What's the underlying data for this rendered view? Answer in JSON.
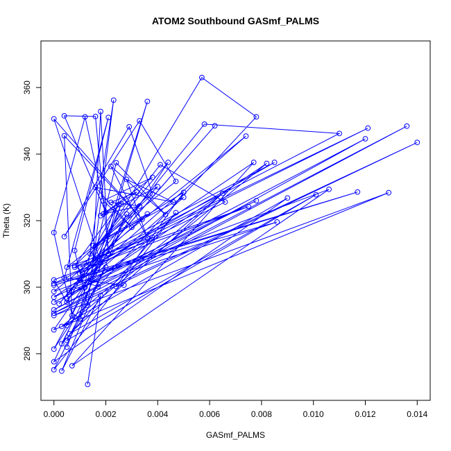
{
  "chart_data": {
    "type": "line",
    "title": "ATOM2 Southbound GASmf_PALMS",
    "xlabel": "GASmf_PALMS",
    "ylabel": "Theta (K)",
    "xlim": [
      -0.0005,
      0.0145
    ],
    "ylim": [
      266,
      374
    ],
    "x_ticks": [
      0.0,
      0.002,
      0.004,
      0.006,
      0.008,
      0.01,
      0.012,
      0.014
    ],
    "x_tick_labels": [
      "0.000",
      "0.002",
      "0.004",
      "0.006",
      "0.008",
      "0.010",
      "0.012",
      "0.014"
    ],
    "y_ticks": [
      280,
      300,
      320,
      340,
      360
    ],
    "y_tick_labels": [
      "280",
      "300",
      "320",
      "340",
      "360"
    ],
    "grid": false,
    "legend": "none",
    "series_color": "#0000ff",
    "marker": "open-circle",
    "points": [
      [
        0.0013,
        270.8
      ],
      [
        0.0018,
        297.5
      ],
      [
        0.0003,
        274.8
      ],
      [
        0.0028,
        322.0
      ],
      [
        0.0003,
        283.0
      ],
      [
        0.0047,
        322.4
      ],
      [
        0.0,
        275.2
      ],
      [
        0.002,
        306.0
      ],
      [
        0.0005,
        284.0
      ],
      [
        0.0101,
        327.8
      ],
      [
        0.0006,
        286.0
      ],
      [
        0.0065,
        328.2
      ],
      [
        0.0003,
        288.2
      ],
      [
        0.009,
        326.8
      ],
      [
        0.0,
        277.6
      ],
      [
        0.0008,
        291.0
      ],
      [
        0.0,
        281.4
      ],
      [
        0.0017,
        306.5
      ],
      [
        0.0,
        287.2
      ],
      [
        0.0129,
        328.4
      ],
      [
        0.0,
        291.5
      ],
      [
        0.014,
        343.5
      ],
      [
        0.0,
        292.2
      ],
      [
        0.0136,
        348.4
      ],
      [
        0.0,
        293.2
      ],
      [
        0.012,
        344.6
      ],
      [
        0.0,
        295.5
      ],
      [
        0.0078,
        326.0
      ],
      [
        0.0,
        297.0
      ],
      [
        0.0077,
        337.5
      ],
      [
        0.0007,
        276.4
      ],
      [
        0.0106,
        329.4
      ],
      [
        0.0,
        298.7
      ],
      [
        0.0074,
        345.4
      ],
      [
        0.0006,
        299.0
      ],
      [
        0.0086,
        319.6
      ],
      [
        0.0,
        300.6
      ],
      [
        0.0117,
        328.6
      ],
      [
        0.0,
        301.1
      ],
      [
        0.0121,
        347.8
      ],
      [
        0.001,
        306.0
      ],
      [
        0.011,
        346.2
      ],
      [
        0.0058,
        349.0
      ],
      [
        0.0002,
        295.0
      ],
      [
        0.0062,
        348.5
      ],
      [
        0.001,
        302.0
      ],
      [
        0.0017,
        300.2
      ],
      [
        0.0078,
        351.2
      ],
      [
        0.0057,
        363.0
      ],
      [
        0.0005,
        295.5
      ],
      [
        0.0,
        302.2
      ],
      [
        0.0075,
        324.2
      ],
      [
        0.0008,
        306.0
      ],
      [
        0.0085,
        337.5
      ],
      [
        0.0011,
        304.5
      ],
      [
        0.0066,
        325.6
      ],
      [
        0.0041,
        336.8
      ],
      [
        0.0014,
        310.0
      ],
      [
        0.0044,
        337.5
      ],
      [
        0.0012,
        300.0
      ],
      [
        0.0038,
        315.0
      ],
      [
        0.0005,
        306.0
      ],
      [
        0.0047,
        331.8
      ],
      [
        0.0033,
        350.0
      ],
      [
        0.0004,
        315.2
      ],
      [
        0.0029,
        348.2
      ],
      [
        0.0038,
        328.0
      ],
      [
        0.0016,
        312.0
      ],
      [
        0.005,
        328.5
      ],
      [
        0.0024,
        300.2
      ],
      [
        0.0027,
        300.6
      ],
      [
        0.0004,
        302.8
      ],
      [
        0.0021,
        351.0
      ],
      [
        0.0008,
        311.0
      ],
      [
        0.0013,
        294.5
      ],
      [
        0.0023,
        356.2
      ],
      [
        0.001,
        290.5
      ],
      [
        0.0036,
        355.8
      ],
      [
        0.0018,
        307.5
      ],
      [
        0.0,
        350.6
      ],
      [
        0.0034,
        320.4
      ],
      [
        0.0004,
        345.5
      ],
      [
        0.0007,
        291.5
      ],
      [
        0.0,
        316.4
      ],
      [
        0.0012,
        351.2
      ],
      [
        0.002,
        322.5
      ],
      [
        0.0004,
        351.5
      ],
      [
        0.0016,
        351.3
      ],
      [
        0.0021,
        310.0
      ],
      [
        0.0018,
        352.8
      ],
      [
        0.0015,
        307.0
      ],
      [
        0.0024,
        337.4
      ],
      [
        0.0043,
        321.8
      ],
      [
        0.0022,
        336.3
      ],
      [
        0.0036,
        314.8
      ],
      [
        0.0028,
        332.4
      ],
      [
        0.0046,
        325.6
      ],
      [
        0.0016,
        330.0
      ],
      [
        0.003,
        318.0
      ],
      [
        0.0019,
        326.0
      ],
      [
        0.0038,
        333.0
      ],
      [
        0.0019,
        322.0
      ],
      [
        0.0033,
        324.4
      ],
      [
        0.0022,
        325.5
      ],
      [
        0.0032,
        328.6
      ],
      [
        0.0018,
        321.5
      ],
      [
        0.004,
        330.2
      ],
      [
        0.0008,
        306.5
      ],
      [
        0.0025,
        324.8
      ],
      [
        0.001,
        304.0
      ],
      [
        0.0036,
        322.0
      ],
      [
        0.0015,
        312.5
      ],
      [
        0.005,
        327.0
      ],
      [
        0.0005,
        296.5
      ],
      [
        0.0082,
        337.2
      ],
      [
        0.0005,
        288.5
      ],
      [
        0.0026,
        325.0
      ],
      [
        0.0005,
        282.0
      ]
    ]
  }
}
